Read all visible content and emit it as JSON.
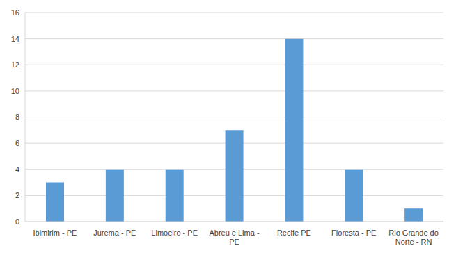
{
  "chart_data": {
    "type": "bar",
    "categories": [
      "Ibimirim - PE",
      "Jurema - PE",
      "Limoeiro - PE",
      "Abreu e Lima - PE",
      "Recife PE",
      "Floresta - PE",
      "Rio Grande do Norte - RN"
    ],
    "values": [
      3,
      4,
      4,
      7,
      14,
      4,
      1
    ],
    "color": "#5b9bd5",
    "ylim": [
      0,
      16
    ],
    "yticks": [
      0,
      2,
      4,
      6,
      8,
      10,
      12,
      14,
      16
    ],
    "grid": true
  }
}
